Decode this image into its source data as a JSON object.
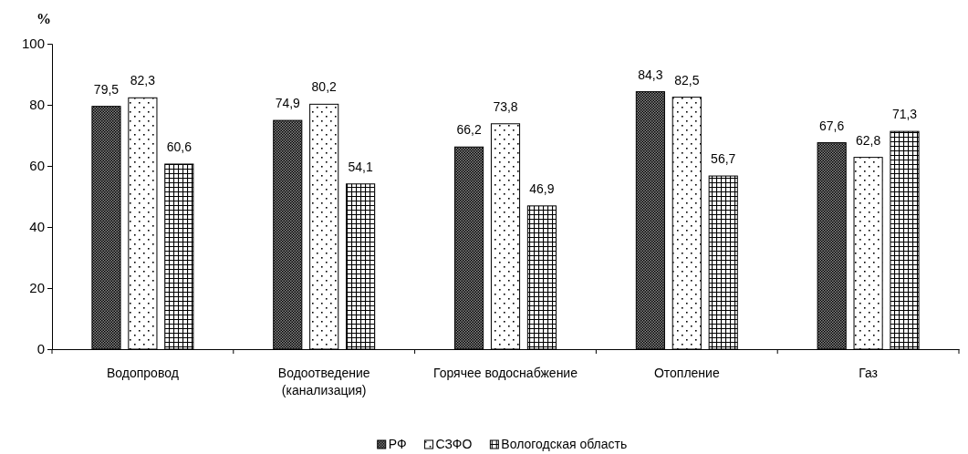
{
  "chart_data": {
    "type": "bar",
    "ylabel": "%",
    "categories": [
      "Водопровод",
      "Водоотведение (канализация)",
      "Горячее водоснабжение",
      "Отопление",
      "Газ"
    ],
    "series": [
      {
        "name": "РФ",
        "color": "#000000",
        "values": [
          79.5,
          74.9,
          66.2,
          84.3,
          67.6
        ],
        "value_labels": [
          "79,5",
          "74,9",
          "66,2",
          "84,3",
          "67,6"
        ]
      },
      {
        "name": "СЗФО",
        "color": "#000000",
        "values": [
          82.3,
          80.2,
          73.8,
          82.5,
          62.8
        ],
        "value_labels": [
          "82,3",
          "80,2",
          "73,8",
          "82,5",
          "62,8"
        ]
      },
      {
        "name": "Вологодская область",
        "color": "#000000",
        "values": [
          60.6,
          54.1,
          46.9,
          56.7,
          71.3
        ],
        "value_labels": [
          "60,6",
          "54,1",
          "46,9",
          "56,7",
          "71,3"
        ]
      }
    ],
    "ylim": [
      0,
      100
    ],
    "yticks": [
      0,
      20,
      40,
      60,
      80,
      100
    ],
    "grid": false,
    "legend": "bottom"
  }
}
